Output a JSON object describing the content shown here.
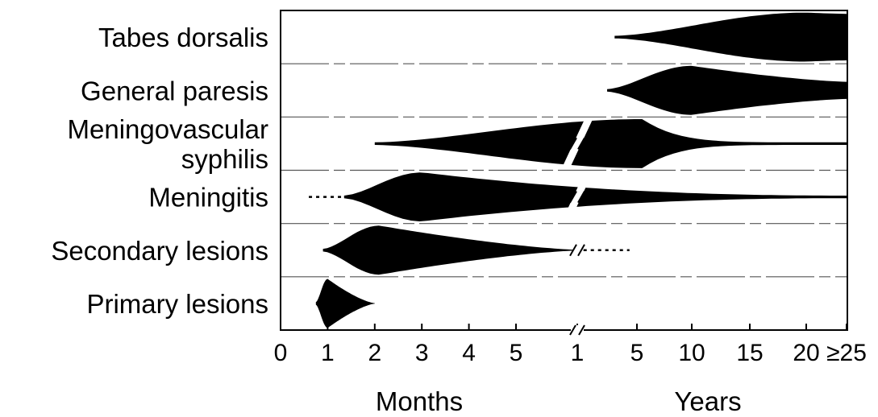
{
  "chart_data": {
    "type": "area",
    "title": "",
    "xlabel_left": "Months",
    "xlabel_right": "Years",
    "x_axis": {
      "segments": [
        {
          "unit": "months",
          "range": [
            0,
            5.6
          ],
          "ticks": [
            0,
            1,
            2,
            3,
            4,
            5
          ],
          "tick_labels": [
            "0",
            "1",
            "2",
            "3",
            "4",
            "5"
          ]
        },
        {
          "unit": "years",
          "range": [
            0.65,
            25
          ],
          "ticks": [
            1,
            5,
            10,
            15,
            20,
            25
          ],
          "tick_labels": [
            "1",
            "5",
            "10",
            "15",
            "20",
            "≥25"
          ]
        }
      ],
      "axis_break": "between 5 months and 1 year"
    },
    "categories": [
      "Tabes dorsalis",
      "General paresis",
      "Meningovascular syphilis",
      "Meningitis",
      "Secondary lesions",
      "Primary lesions"
    ],
    "series": [
      {
        "name": "Tabes dorsalis",
        "onset": {
          "unit": "years",
          "value": 3.5
        },
        "peak": {
          "unit": "years",
          "value": 20
        },
        "end": {
          "unit": "years",
          "value": 25,
          "open_ended": true
        }
      },
      {
        "name": "General paresis",
        "onset": {
          "unit": "years",
          "value": 3
        },
        "peak": {
          "unit": "years",
          "value": 10
        },
        "end": {
          "unit": "years",
          "value": 25,
          "open_ended": true
        }
      },
      {
        "name": "Meningovascular syphilis",
        "onset": {
          "unit": "months",
          "value": 2
        },
        "peak": {
          "unit": "years",
          "value": 5.5
        },
        "end": {
          "unit": "years",
          "value": 25,
          "open_ended": true
        }
      },
      {
        "name": "Meningitis",
        "onset": {
          "unit": "months",
          "value": 1.35
        },
        "onset_dotted_from": {
          "unit": "months",
          "value": 0.6
        },
        "peak": {
          "unit": "months",
          "value": 3
        },
        "end": {
          "unit": "years",
          "value": 25,
          "open_ended": true
        }
      },
      {
        "name": "Secondary lesions",
        "onset": {
          "unit": "months",
          "value": 0.9
        },
        "peak": {
          "unit": "months",
          "value": 2.1
        },
        "end": {
          "unit": "years",
          "value": 1.2
        },
        "tail_dotted_to": {
          "unit": "years",
          "value": 4.5
        }
      },
      {
        "name": "Primary lesions",
        "onset": {
          "unit": "months",
          "value": 0.75
        },
        "peak": {
          "unit": "months",
          "value": 1
        },
        "end": {
          "unit": "months",
          "value": 2
        }
      }
    ],
    "grid": false,
    "legend": "none"
  },
  "labels": {
    "stage_lines": [
      [
        "Tabes dorsalis"
      ],
      [
        "General paresis"
      ],
      [
        "Meningovascular",
        "syphilis"
      ],
      [
        "Meningitis"
      ],
      [
        "Secondary lesions"
      ],
      [
        "Primary lesions"
      ]
    ]
  }
}
